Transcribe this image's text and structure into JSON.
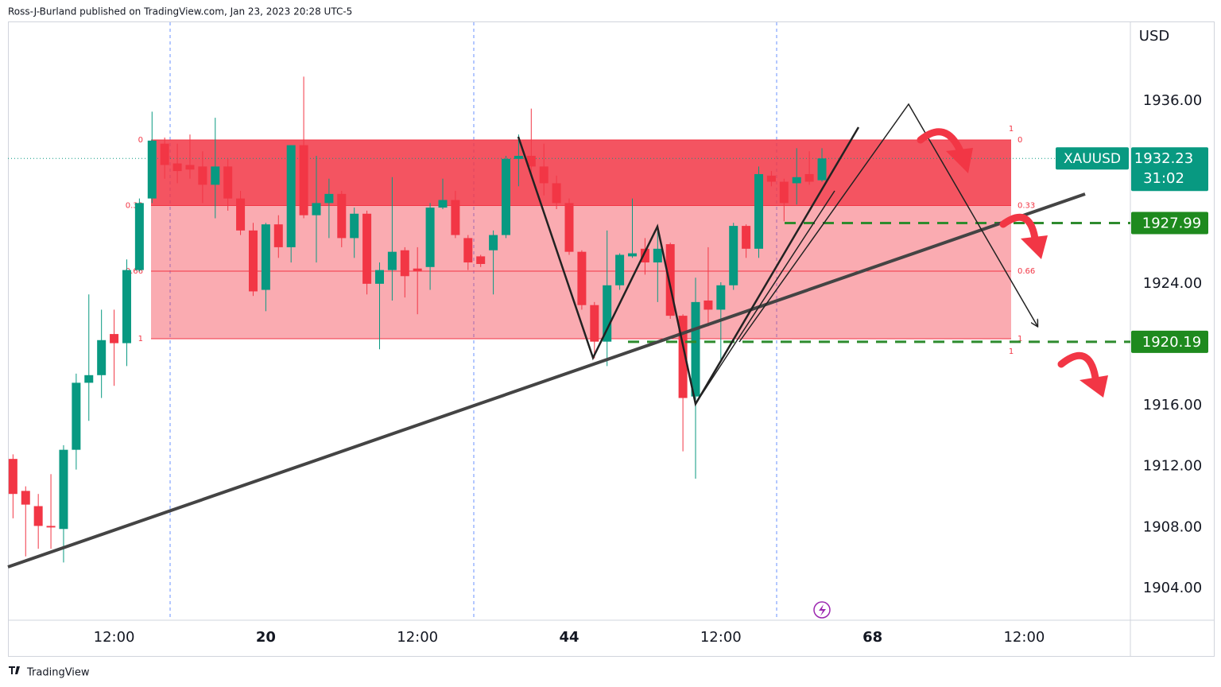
{
  "chart_data": {
    "type": "candlestick",
    "header": "Ross-J-Burland published on TradingView.com, Jan 23, 2023 20:28 UTC-5",
    "currency": "USD",
    "symbol": "XAUUSD",
    "countdown": "31:02",
    "brand": "TradingView",
    "last_price": 1932.23,
    "price_lines": [
      1927.99,
      1920.19
    ],
    "fib_levels": [
      0,
      0.33,
      0.66,
      1
    ],
    "fib_outer_labels": [
      "1",
      "1"
    ],
    "up_color": "#089981",
    "down_color": "#f23645",
    "open": [
      1912.5,
      1910.4,
      1909.4,
      1908.1,
      1907.9,
      1913.1,
      1917.5,
      1918.0,
      1920.7,
      1920.1,
      1924.9,
      1929.6,
      1933.2,
      1931.9,
      1931.8,
      1931.7,
      1930.5,
      1931.7,
      1929.6,
      1927.5,
      1923.6,
      1927.9,
      1926.4,
      1933.1,
      1928.5,
      1929.3,
      1929.9,
      1927.0,
      1928.6,
      1924.0,
      1924.9,
      1926.2,
      1925.0,
      1925.1,
      1929.0,
      1929.5,
      1927.0,
      1925.8,
      1926.2,
      1927.2,
      1932.2,
      1932.4,
      1931.7,
      1930.6,
      1929.3,
      1926.1,
      1922.6,
      1920.2,
      1923.9,
      1925.8,
      1926.3,
      1925.4,
      1926.6,
      1921.9,
      1916.6,
      1922.9,
      1922.3,
      1923.9,
      1927.8,
      1926.3,
      1931.1,
      1930.7,
      1930.6,
      1931.2,
      1930.8
    ],
    "high": [
      1912.8,
      1910.7,
      1910.2,
      1911.5,
      1913.4,
      1918.1,
      1923.3,
      1922.3,
      1922.3,
      1925.6,
      1929.6,
      1935.3,
      1933.6,
      1933.2,
      1933.8,
      1932.7,
      1934.9,
      1932.2,
      1930.1,
      1928.0,
      1928.0,
      1928.5,
      1933.1,
      1937.6,
      1932.4,
      1930.9,
      1930.1,
      1929.0,
      1928.8,
      1925.4,
      1931.0,
      1926.4,
      1926.4,
      1929.3,
      1930.9,
      1930.1,
      1927.2,
      1925.9,
      1927.5,
      1932.4,
      1933.8,
      1935.5,
      1933.2,
      1931.1,
      1929.6,
      1926.2,
      1922.8,
      1927.5,
      1926.0,
      1929.6,
      1927.0,
      1927.8,
      1926.7,
      1922.0,
      1924.4,
      1926.4,
      1924.1,
      1928.0,
      1927.9,
      1931.7,
      1931.4,
      1930.9,
      1932.9,
      1932.7,
      1932.9
    ],
    "low": [
      1908.6,
      1906.1,
      1906.6,
      1906.6,
      1905.7,
      1911.8,
      1915.0,
      1916.5,
      1917.3,
      1918.6,
      1924.8,
      1929.3,
      1930.9,
      1930.6,
      1930.9,
      1929.3,
      1928.3,
      1928.8,
      1927.2,
      1923.2,
      1922.2,
      1925.7,
      1925.4,
      1928.3,
      1925.4,
      1927.0,
      1926.4,
      1925.7,
      1923.3,
      1919.7,
      1922.9,
      1923.1,
      1922.0,
      1923.6,
      1928.9,
      1927.0,
      1924.9,
      1925.1,
      1923.3,
      1927.0,
      1930.4,
      1931.1,
      1929.8,
      1928.9,
      1925.9,
      1922.3,
      1919.1,
      1918.6,
      1923.6,
      1925.7,
      1924.6,
      1922.8,
      1921.7,
      1913.0,
      1911.2,
      1921.2,
      1919.0,
      1923.6,
      1925.7,
      1925.7,
      1930.4,
      1928.1,
      1929.2,
      1930.5,
      1930.7
    ],
    "close": [
      1910.2,
      1909.5,
      1908.1,
      1908.0,
      1913.1,
      1917.5,
      1918.0,
      1920.3,
      1920.1,
      1924.9,
      1929.3,
      1933.4,
      1931.8,
      1931.4,
      1931.5,
      1930.5,
      1931.7,
      1929.6,
      1927.5,
      1923.5,
      1927.9,
      1926.4,
      1933.1,
      1928.5,
      1929.3,
      1929.9,
      1927.0,
      1928.6,
      1924.0,
      1924.9,
      1926.1,
      1924.5,
      1924.8,
      1929.0,
      1929.5,
      1927.2,
      1925.4,
      1925.3,
      1927.2,
      1932.2,
      1932.4,
      1931.7,
      1930.6,
      1929.3,
      1926.1,
      1922.6,
      1920.2,
      1923.9,
      1925.9,
      1926.0,
      1925.4,
      1926.3,
      1921.9,
      1916.5,
      1922.8,
      1922.3,
      1923.9,
      1927.8,
      1926.3,
      1931.2,
      1930.7,
      1929.3,
      1931.0,
      1930.7,
      1932.23
    ],
    "xlim": [
      -0.4,
      88.4
    ],
    "xticks": [
      {
        "value": 8,
        "label": "12:00"
      },
      20,
      {
        "value": 32,
        "label": "12:00"
      },
      44,
      {
        "value": 56,
        "label": "12:00"
      },
      68,
      {
        "value": 80,
        "label": "12:00"
      }
    ],
    "ylim": [
      1901.91,
      1941.17
    ],
    "yticks": [
      {
        "value": 1904,
        "label": "1904.00"
      },
      {
        "value": 1908,
        "label": "1908.00"
      },
      {
        "value": 1912,
        "label": "1912.00"
      },
      {
        "value": 1916,
        "label": "1916.00"
      },
      {
        "value": 1920,
        "label": "1920.00"
      },
      {
        "value": 1924,
        "label": "1924.00"
      },
      {
        "value": 1928,
        "label": "1928.00"
      },
      {
        "value": 1932,
        "label": "1932.00"
      },
      {
        "value": 1936,
        "label": "1936.00"
      }
    ]
  }
}
